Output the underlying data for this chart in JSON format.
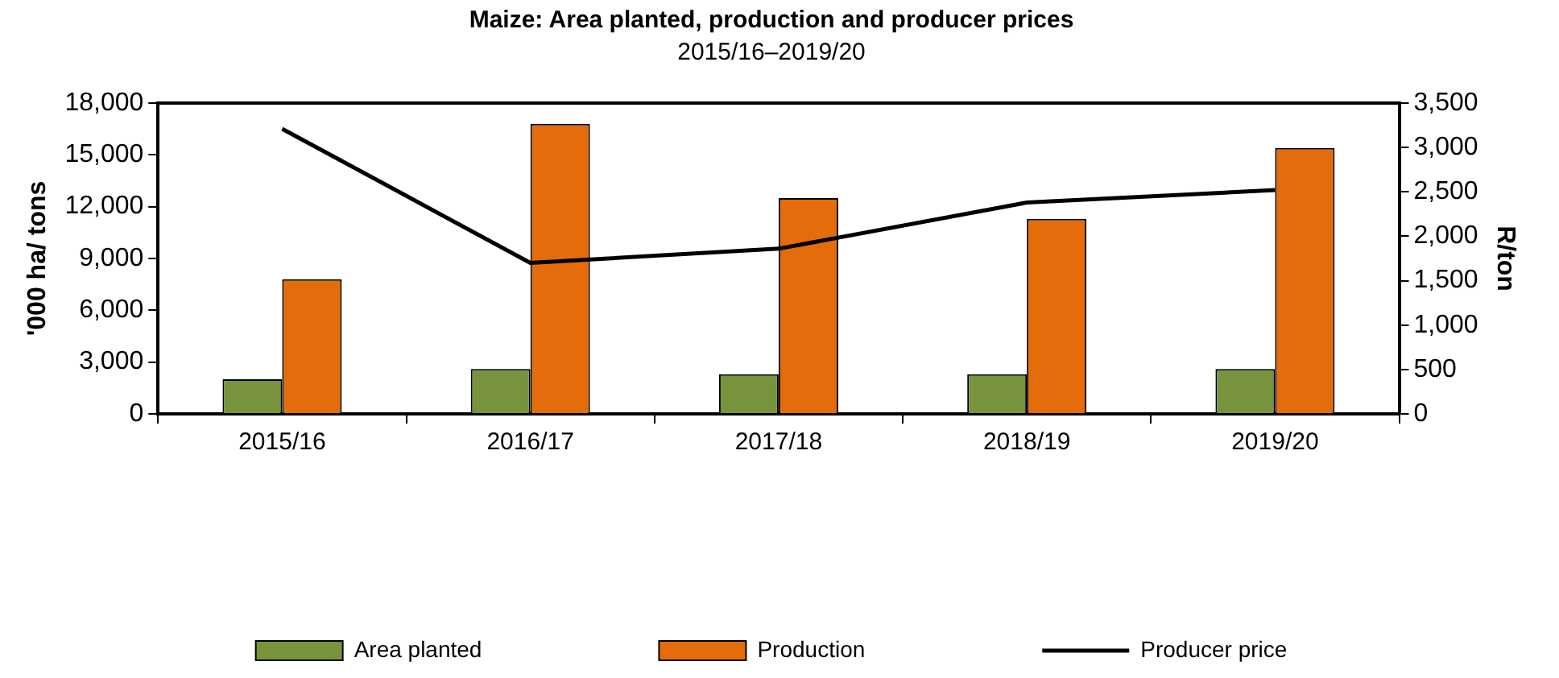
{
  "chart_data": {
    "type": "bar",
    "title": "Maize: Area planted, production and producer prices",
    "subtitle": "2015/16–2019/20",
    "ylabel": "'000 ha/ tons",
    "y2label": "R/ton",
    "categories": [
      "2015/16",
      "2016/17",
      "2017/18",
      "2018/19",
      "2019/20"
    ],
    "series": [
      {
        "name": "Area planted",
        "color": "#77933c",
        "values": [
          2000,
          2600,
          2300,
          2300,
          2600
        ]
      },
      {
        "name": "Production",
        "color": "#e46c0a",
        "values": [
          7800,
          16800,
          12500,
          11300,
          15400
        ]
      },
      {
        "name": "Producer price",
        "type": "line",
        "axis": "y2",
        "color": "#000000",
        "values": [
          3210,
          1700,
          1860,
          2380,
          2520
        ]
      }
    ],
    "ylim": [
      0,
      18000
    ],
    "yticks": [
      0,
      {
        "value": 3000,
        "label": "3,000"
      },
      {
        "value": 6000,
        "label": "6,000"
      },
      {
        "value": 9000,
        "label": "9,000"
      },
      {
        "value": 12000,
        "label": "12,000"
      },
      {
        "value": 15000,
        "label": "15,000"
      },
      {
        "value": 18000,
        "label": "18,000"
      }
    ],
    "y2lim": [
      0,
      3500
    ],
    "y2ticks": [
      0,
      500,
      {
        "value": 1000,
        "label": "1,000"
      },
      {
        "value": 1500,
        "label": "1,500"
      },
      {
        "value": 2000,
        "label": "2,000"
      },
      {
        "value": 2500,
        "label": "2,500"
      },
      {
        "value": 3000,
        "label": "3,000"
      },
      {
        "value": 3500,
        "label": "3,500"
      }
    ],
    "grid": false,
    "legend": "bottom",
    "marker": "none",
    "line_style": "solid"
  }
}
